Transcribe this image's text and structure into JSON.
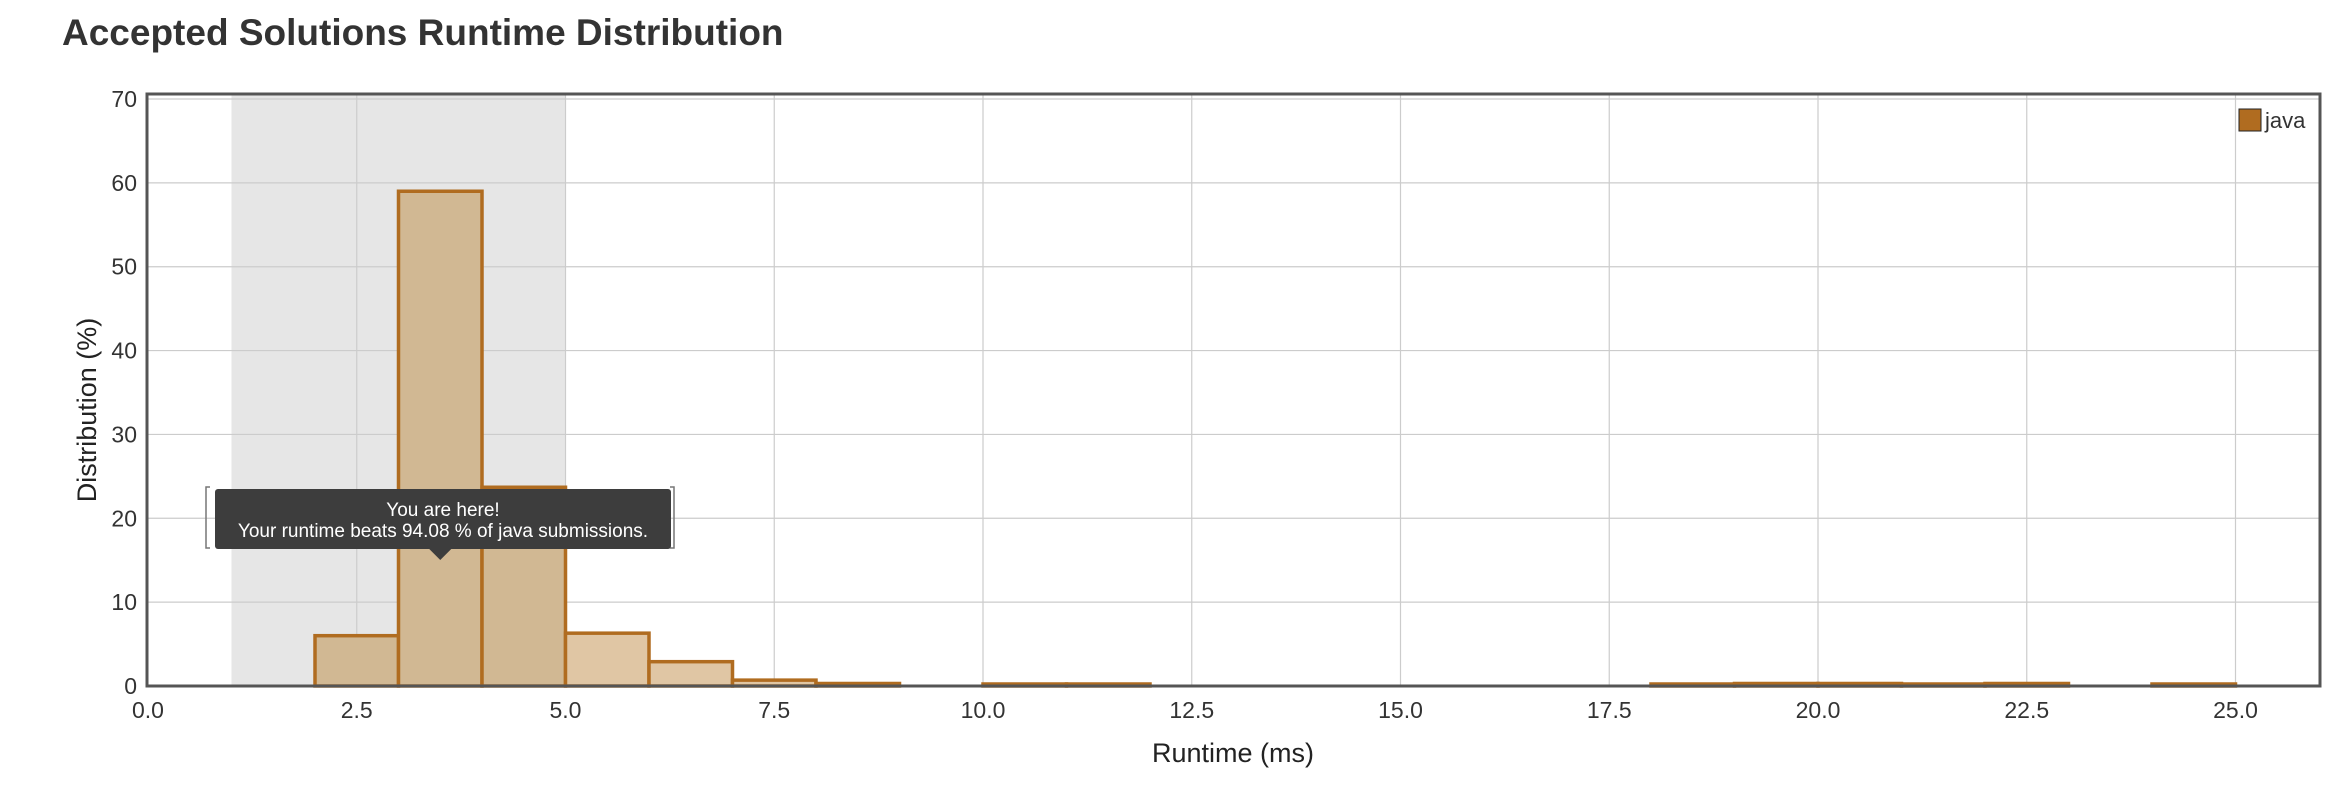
{
  "page_title": "Accepted Solutions Runtime Distribution",
  "chart_data": {
    "type": "bar",
    "title": "Accepted Solutions Runtime Distribution",
    "xlabel": "Runtime (ms)",
    "ylabel": "Distribution (%)",
    "xlim": [
      0,
      26
    ],
    "ylim": [
      0,
      70
    ],
    "x_ticks": [
      "0.0",
      "2.5",
      "5.0",
      "7.5",
      "10.0",
      "12.5",
      "15.0",
      "17.5",
      "20.0",
      "22.5",
      "25.0"
    ],
    "x_tick_values": [
      0,
      2.5,
      5,
      7.5,
      10,
      12.5,
      15,
      17.5,
      20,
      22.5,
      25
    ],
    "y_ticks": [
      "0",
      "10",
      "20",
      "30",
      "40",
      "50",
      "60",
      "70"
    ],
    "y_tick_values": [
      0,
      10,
      20,
      30,
      40,
      50,
      60,
      70
    ],
    "grid": true,
    "legend_position": "top-right",
    "highlight_range": [
      1,
      5
    ],
    "series": [
      {
        "name": "java",
        "color": "#b06c20",
        "fill": "#e0c6a4",
        "highlight_fill": "#d1b893",
        "bins": [
          {
            "x0": 2,
            "x1": 3,
            "value": 6
          },
          {
            "x0": 3,
            "x1": 4,
            "value": 59
          },
          {
            "x0": 4,
            "x1": 5,
            "value": 23.7
          },
          {
            "x0": 5,
            "x1": 6,
            "value": 6.3
          },
          {
            "x0": 6,
            "x1": 7,
            "value": 2.9
          },
          {
            "x0": 7,
            "x1": 8,
            "value": 0.7
          },
          {
            "x0": 8,
            "x1": 9,
            "value": 0.3
          },
          {
            "x0": 10,
            "x1": 11,
            "value": 0.2
          },
          {
            "x0": 11,
            "x1": 12,
            "value": 0.15
          },
          {
            "x0": 18,
            "x1": 19,
            "value": 0.2
          },
          {
            "x0": 19,
            "x1": 20,
            "value": 0.3
          },
          {
            "x0": 20,
            "x1": 21,
            "value": 0.3
          },
          {
            "x0": 21,
            "x1": 22,
            "value": 0.2
          },
          {
            "x0": 22,
            "x1": 23,
            "value": 0.3
          },
          {
            "x0": 24,
            "x1": 25,
            "value": 0.2
          }
        ]
      }
    ],
    "tooltip": {
      "line1": "You are here!",
      "line2": "Your runtime beats 94.08 % of java submissions.",
      "anchor_x": 3.5,
      "anchor_y": 16
    }
  }
}
